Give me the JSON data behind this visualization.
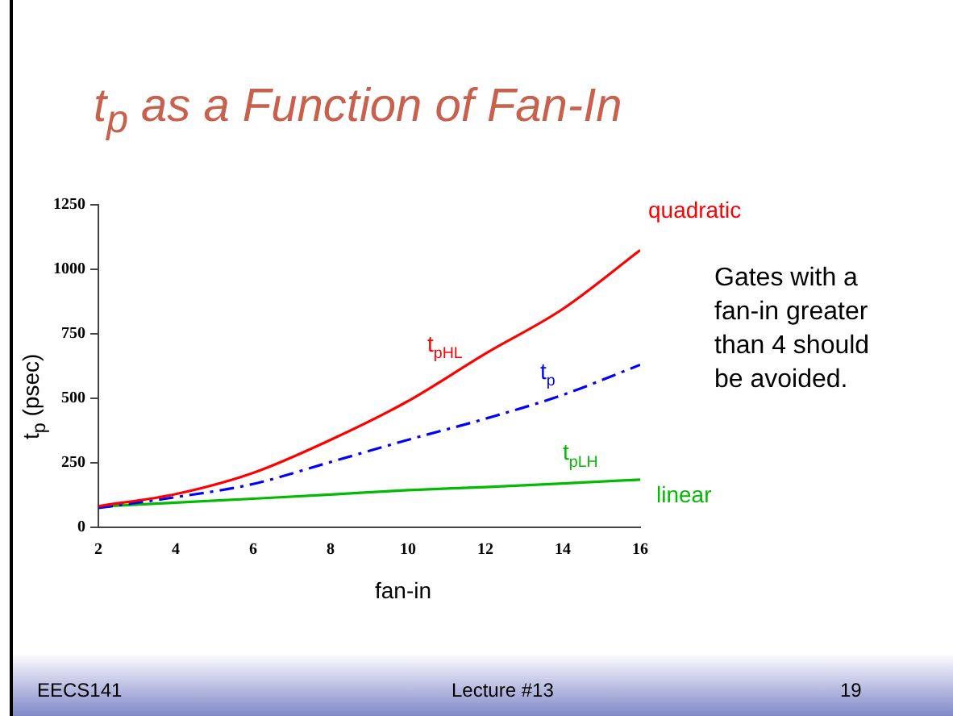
{
  "chart_data": {
    "type": "line",
    "title": "t$_{p}$ as a Function of Fan-In",
    "xlabel": "fan-in",
    "ylabel": "t$_{p}$ (psec)",
    "x": [
      2,
      4,
      6,
      8,
      10,
      12,
      14,
      16
    ],
    "series": [
      {
        "name": "t$_{pHL}$",
        "color": "#ff0000",
        "line_style": "solid",
        "values": [
          82,
          129,
          211,
          339,
          489,
          673,
          846,
          1074
        ]
      },
      {
        "name": "t$_{p}$",
        "color": "#0000ff",
        "line_style": "dashed",
        "values": [
          75,
          117,
          168,
          253,
          339,
          421,
          513,
          630
        ]
      },
      {
        "name": "t$_{pLH}$",
        "color": "#00bb00",
        "line_style": "solid",
        "values": [
          80,
          96,
          111,
          127,
          144,
          156,
          170,
          185
        ]
      }
    ],
    "xlim": [
      2,
      16
    ],
    "xticks": [
      2,
      4,
      6,
      8,
      10,
      12,
      14,
      16
    ],
    "ylim": [
      0,
      1250
    ],
    "yticks": [
      0,
      250,
      500,
      750,
      1000,
      1250
    ],
    "grid": false,
    "legend": false,
    "marker": "none",
    "annotations": [
      {
        "text": "quadratic",
        "x": 16,
        "y": 1074
      },
      {
        "text": "linear",
        "x": 16,
        "y": 185
      },
      "Gates with a fan-in greater than 4 should be avoided.",
      "EECS141",
      "Lecture #13",
      "19"
    ]
  }
}
